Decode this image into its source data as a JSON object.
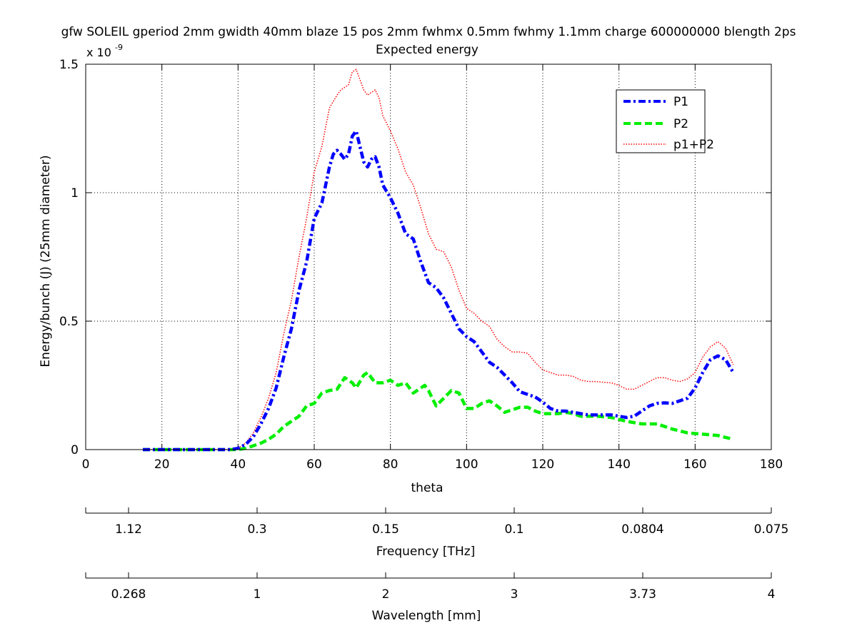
{
  "chart_data": {
    "type": "line",
    "title": "gfw SOLEIL gperiod 2mm gwidth 40mm blaze 15 pos 2mm fwhmx 0.5mm fwhmy 1.1mm charge 600000000 blength 2ps",
    "subtitle": "Expected energy",
    "xlabel": "theta",
    "ylabel": "Energy/bunch (J) (25mm diameter)",
    "y_exponent_label": "x 10",
    "y_exponent_power": "-9",
    "xlim": [
      0,
      180
    ],
    "ylim": [
      0,
      1.5
    ],
    "x_ticks": [
      "0",
      "20",
      "40",
      "60",
      "80",
      "100",
      "120",
      "140",
      "160",
      "180"
    ],
    "y_ticks": [
      "0",
      "0.5",
      "1",
      "1.5"
    ],
    "grid": true,
    "legend_position": "top-right",
    "series": [
      {
        "name": "P1",
        "color": "#0000ff",
        "style": "dash-dot",
        "points": [
          [
            15,
            0
          ],
          [
            20,
            0
          ],
          [
            25,
            0
          ],
          [
            30,
            0
          ],
          [
            35,
            0
          ],
          [
            38,
            0
          ],
          [
            40,
            0.005
          ],
          [
            42,
            0.02
          ],
          [
            44,
            0.05
          ],
          [
            46,
            0.1
          ],
          [
            48,
            0.16
          ],
          [
            50,
            0.24
          ],
          [
            52,
            0.36
          ],
          [
            54,
            0.47
          ],
          [
            56,
            0.62
          ],
          [
            58,
            0.73
          ],
          [
            60,
            0.9
          ],
          [
            62,
            0.96
          ],
          [
            63,
            1.03
          ],
          [
            64,
            1.1
          ],
          [
            65,
            1.15
          ],
          [
            66,
            1.165
          ],
          [
            67,
            1.15
          ],
          [
            68,
            1.13
          ],
          [
            69,
            1.15
          ],
          [
            70,
            1.22
          ],
          [
            71,
            1.24
          ],
          [
            72,
            1.18
          ],
          [
            73,
            1.12
          ],
          [
            74,
            1.1
          ],
          [
            75,
            1.13
          ],
          [
            76,
            1.14
          ],
          [
            77,
            1.1
          ],
          [
            78,
            1.03
          ],
          [
            80,
            0.98
          ],
          [
            82,
            0.92
          ],
          [
            84,
            0.84
          ],
          [
            86,
            0.82
          ],
          [
            88,
            0.73
          ],
          [
            90,
            0.65
          ],
          [
            92,
            0.63
          ],
          [
            94,
            0.59
          ],
          [
            96,
            0.53
          ],
          [
            98,
            0.47
          ],
          [
            100,
            0.44
          ],
          [
            102,
            0.42
          ],
          [
            104,
            0.38
          ],
          [
            106,
            0.34
          ],
          [
            108,
            0.32
          ],
          [
            110,
            0.29
          ],
          [
            112,
            0.26
          ],
          [
            114,
            0.225
          ],
          [
            116,
            0.215
          ],
          [
            118,
            0.205
          ],
          [
            120,
            0.185
          ],
          [
            122,
            0.16
          ],
          [
            124,
            0.15
          ],
          [
            126,
            0.15
          ],
          [
            128,
            0.145
          ],
          [
            130,
            0.14
          ],
          [
            132,
            0.135
          ],
          [
            134,
            0.135
          ],
          [
            136,
            0.135
          ],
          [
            138,
            0.135
          ],
          [
            140,
            0.13
          ],
          [
            142,
            0.125
          ],
          [
            144,
            0.13
          ],
          [
            146,
            0.15
          ],
          [
            148,
            0.17
          ],
          [
            150,
            0.18
          ],
          [
            152,
            0.182
          ],
          [
            154,
            0.18
          ],
          [
            156,
            0.19
          ],
          [
            158,
            0.2
          ],
          [
            160,
            0.24
          ],
          [
            162,
            0.3
          ],
          [
            164,
            0.35
          ],
          [
            166,
            0.365
          ],
          [
            168,
            0.35
          ],
          [
            170,
            0.3
          ]
        ]
      },
      {
        "name": "P2",
        "color": "#00ee00",
        "style": "dashed",
        "points": [
          [
            15,
            0
          ],
          [
            20,
            0
          ],
          [
            25,
            0
          ],
          [
            30,
            0
          ],
          [
            35,
            0
          ],
          [
            40,
            0
          ],
          [
            42,
            0.005
          ],
          [
            44,
            0.015
          ],
          [
            46,
            0.025
          ],
          [
            48,
            0.04
          ],
          [
            50,
            0.06
          ],
          [
            52,
            0.09
          ],
          [
            54,
            0.11
          ],
          [
            56,
            0.13
          ],
          [
            58,
            0.17
          ],
          [
            60,
            0.18
          ],
          [
            62,
            0.22
          ],
          [
            64,
            0.23
          ],
          [
            66,
            0.235
          ],
          [
            68,
            0.28
          ],
          [
            70,
            0.26
          ],
          [
            71,
            0.24
          ],
          [
            73,
            0.29
          ],
          [
            74,
            0.3
          ],
          [
            76,
            0.26
          ],
          [
            78,
            0.26
          ],
          [
            80,
            0.27
          ],
          [
            82,
            0.25
          ],
          [
            84,
            0.26
          ],
          [
            86,
            0.22
          ],
          [
            88,
            0.24
          ],
          [
            89,
            0.25
          ],
          [
            90,
            0.23
          ],
          [
            92,
            0.17
          ],
          [
            94,
            0.2
          ],
          [
            96,
            0.23
          ],
          [
            98,
            0.22
          ],
          [
            100,
            0.16
          ],
          [
            102,
            0.16
          ],
          [
            104,
            0.18
          ],
          [
            106,
            0.19
          ],
          [
            108,
            0.17
          ],
          [
            110,
            0.145
          ],
          [
            112,
            0.155
          ],
          [
            114,
            0.165
          ],
          [
            116,
            0.165
          ],
          [
            118,
            0.15
          ],
          [
            120,
            0.14
          ],
          [
            122,
            0.14
          ],
          [
            124,
            0.14
          ],
          [
            126,
            0.145
          ],
          [
            128,
            0.14
          ],
          [
            130,
            0.13
          ],
          [
            134,
            0.13
          ],
          [
            138,
            0.125
          ],
          [
            142,
            0.11
          ],
          [
            146,
            0.1
          ],
          [
            150,
            0.1
          ],
          [
            154,
            0.08
          ],
          [
            158,
            0.065
          ],
          [
            162,
            0.06
          ],
          [
            166,
            0.055
          ],
          [
            170,
            0.04
          ]
        ]
      },
      {
        "name": "p1+P2",
        "color": "#ff0000",
        "style": "dotted",
        "points": [
          [
            15,
            0
          ],
          [
            20,
            0
          ],
          [
            25,
            0
          ],
          [
            30,
            0
          ],
          [
            35,
            0
          ],
          [
            38,
            0
          ],
          [
            40,
            0.005
          ],
          [
            42,
            0.025
          ],
          [
            44,
            0.065
          ],
          [
            46,
            0.125
          ],
          [
            48,
            0.2
          ],
          [
            50,
            0.3
          ],
          [
            52,
            0.45
          ],
          [
            54,
            0.58
          ],
          [
            56,
            0.75
          ],
          [
            58,
            0.9
          ],
          [
            60,
            1.08
          ],
          [
            62,
            1.18
          ],
          [
            64,
            1.33
          ],
          [
            66,
            1.38
          ],
          [
            67,
            1.4
          ],
          [
            68,
            1.41
          ],
          [
            69,
            1.42
          ],
          [
            70,
            1.47
          ],
          [
            71,
            1.48
          ],
          [
            72,
            1.44
          ],
          [
            73,
            1.4
          ],
          [
            74,
            1.38
          ],
          [
            75,
            1.39
          ],
          [
            76,
            1.4
          ],
          [
            77,
            1.37
          ],
          [
            78,
            1.3
          ],
          [
            80,
            1.24
          ],
          [
            82,
            1.17
          ],
          [
            84,
            1.08
          ],
          [
            86,
            1.03
          ],
          [
            88,
            0.94
          ],
          [
            90,
            0.84
          ],
          [
            92,
            0.78
          ],
          [
            94,
            0.77
          ],
          [
            96,
            0.71
          ],
          [
            98,
            0.62
          ],
          [
            100,
            0.55
          ],
          [
            102,
            0.53
          ],
          [
            104,
            0.5
          ],
          [
            106,
            0.48
          ],
          [
            108,
            0.43
          ],
          [
            110,
            0.4
          ],
          [
            112,
            0.38
          ],
          [
            114,
            0.38
          ],
          [
            116,
            0.375
          ],
          [
            118,
            0.34
          ],
          [
            120,
            0.31
          ],
          [
            122,
            0.3
          ],
          [
            124,
            0.29
          ],
          [
            126,
            0.29
          ],
          [
            128,
            0.285
          ],
          [
            130,
            0.27
          ],
          [
            132,
            0.265
          ],
          [
            134,
            0.265
          ],
          [
            136,
            0.262
          ],
          [
            138,
            0.26
          ],
          [
            140,
            0.25
          ],
          [
            142,
            0.235
          ],
          [
            144,
            0.235
          ],
          [
            146,
            0.25
          ],
          [
            148,
            0.265
          ],
          [
            150,
            0.28
          ],
          [
            152,
            0.28
          ],
          [
            154,
            0.27
          ],
          [
            156,
            0.265
          ],
          [
            158,
            0.275
          ],
          [
            160,
            0.3
          ],
          [
            162,
            0.36
          ],
          [
            164,
            0.4
          ],
          [
            166,
            0.42
          ],
          [
            168,
            0.395
          ],
          [
            170,
            0.33
          ]
        ]
      }
    ],
    "secondary_axes": [
      {
        "label": "Frequency [THz]",
        "ticks": [
          "1.12",
          "0.3",
          "0.15",
          "0.1",
          "0.0804",
          "0.075"
        ]
      },
      {
        "label": "Wavelength [mm]",
        "ticks": [
          "0.268",
          "1",
          "2",
          "3",
          "3.73",
          "4"
        ]
      }
    ]
  }
}
